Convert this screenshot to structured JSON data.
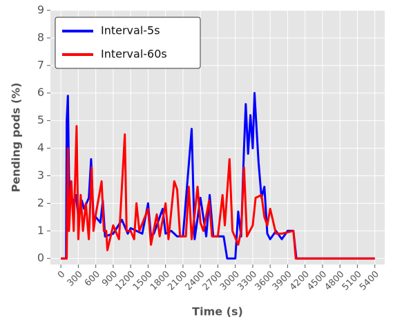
{
  "chart_data": {
    "type": "line",
    "x_label": "Time (s)",
    "y_label": "Pending pods (%)",
    "xlim": [
      -180,
      5570
    ],
    "ylim": [
      -0.22,
      9
    ],
    "xticks": [
      0,
      300,
      600,
      900,
      1200,
      1500,
      1800,
      2100,
      2400,
      2700,
      3000,
      3300,
      3600,
      3900,
      4200,
      4500,
      4800,
      5100,
      5400
    ],
    "yticks": [
      0,
      1,
      2,
      3,
      4,
      5,
      6,
      7,
      8,
      9
    ],
    "grid": true,
    "legend": "upper-left",
    "series": [
      {
        "name": "Interval-5s",
        "color": "#0000ff",
        "x": [
          0,
          90,
          100,
          120,
          140,
          160,
          200,
          260,
          300,
          360,
          400,
          480,
          520,
          560,
          600,
          680,
          720,
          760,
          900,
          1050,
          1150,
          1200,
          1300,
          1400,
          1500,
          1550,
          1600,
          1750,
          1800,
          1900,
          2000,
          2100,
          2250,
          2300,
          2400,
          2500,
          2560,
          2620,
          2800,
          2860,
          3000,
          3050,
          3100,
          3150,
          3180,
          3220,
          3260,
          3300,
          3330,
          3360,
          3400,
          3450,
          3500,
          3550,
          3600,
          3700,
          3800,
          3900,
          4000,
          4050,
          5400
        ],
        "values": [
          0,
          0,
          5,
          5.9,
          3,
          2.1,
          2,
          2.3,
          1.5,
          2.1,
          1.8,
          2.2,
          3.6,
          1.5,
          1.5,
          1.3,
          2.1,
          0.8,
          0.9,
          1.4,
          0.9,
          1.1,
          1.0,
          0.9,
          2.0,
          0.8,
          0.9,
          1.8,
          0.9,
          1.0,
          0.8,
          0.8,
          4.7,
          0.7,
          2.2,
          0.8,
          2.3,
          0.8,
          0.8,
          0,
          0,
          1.7,
          0.8,
          4,
          5.6,
          3.8,
          5.2,
          4,
          6,
          4.9,
          3.5,
          2.2,
          2.6,
          0.9,
          0.7,
          1.0,
          0.7,
          1.0,
          1.0,
          0,
          0
        ]
      },
      {
        "name": "Interval-60s",
        "color": "#ff0000",
        "x": [
          0,
          100,
          120,
          140,
          180,
          220,
          270,
          300,
          340,
          380,
          430,
          480,
          530,
          560,
          600,
          700,
          740,
          780,
          800,
          900,
          1000,
          1100,
          1130,
          1200,
          1260,
          1300,
          1350,
          1500,
          1550,
          1650,
          1700,
          1800,
          1850,
          1950,
          2000,
          2050,
          2150,
          2200,
          2250,
          2300,
          2350,
          2400,
          2450,
          2550,
          2600,
          2700,
          2780,
          2820,
          2900,
          2950,
          3050,
          3100,
          3150,
          3200,
          3300,
          3350,
          3450,
          3500,
          3550,
          3600,
          3700,
          3800,
          4000,
          4040,
          5400
        ],
        "values": [
          0,
          0,
          4,
          1,
          2.8,
          1,
          4.8,
          0.7,
          2.3,
          1,
          2,
          0.7,
          3.3,
          1,
          1.6,
          2.8,
          1,
          1,
          0.3,
          1.2,
          0.7,
          4.5,
          1,
          1,
          0.7,
          2,
          1,
          1.8,
          0.5,
          1.6,
          0.8,
          2.0,
          0.7,
          2.8,
          2.5,
          0.8,
          0.8,
          2.6,
          0.7,
          1.6,
          2.6,
          1.3,
          1.0,
          2.1,
          0.8,
          0.8,
          2.3,
          1.2,
          3.6,
          1,
          0.5,
          1.0,
          3.3,
          0.8,
          1.2,
          2.2,
          2.3,
          1.5,
          1.2,
          1.8,
          0.9,
          0.9,
          1.0,
          0,
          0
        ]
      }
    ]
  }
}
